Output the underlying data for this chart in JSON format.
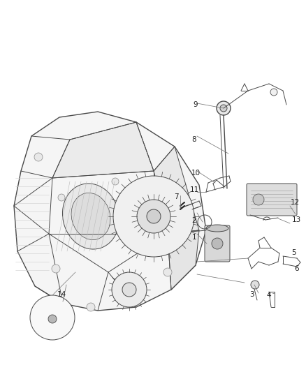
{
  "bg_color": "#ffffff",
  "fig_width": 4.38,
  "fig_height": 5.33,
  "dpi": 100,
  "line_color": "#4a4a4a",
  "light_gray": "#888888",
  "label_fs": 7.5
}
